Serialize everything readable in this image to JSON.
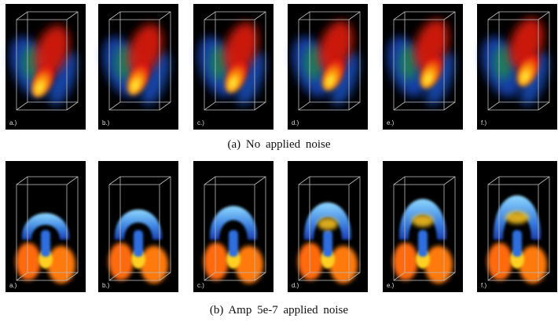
{
  "figure": {
    "rows": [
      {
        "panels": [
          "a.)",
          "b.)",
          "c.)",
          "d.)",
          "e.)",
          "f.)"
        ],
        "caption": "(a) No applied noise"
      },
      {
        "panels": [
          "a.)",
          "b.)",
          "c.)",
          "d.)",
          "e.)",
          "f.)"
        ],
        "caption": "(b) Amp 5e-7 applied noise"
      }
    ]
  }
}
